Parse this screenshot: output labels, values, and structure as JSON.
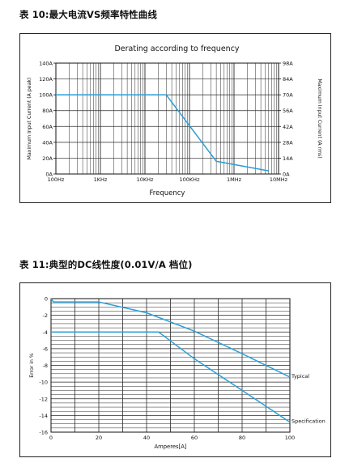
{
  "headings": {
    "table10": "表 10:最大电流VS频率特性曲线",
    "table11": "表 11:典型的DC线性度(0.01V/A 档位)"
  },
  "colors": {
    "series": "#2a9fd8",
    "grid": "#2a2a2a",
    "axis": "#111111"
  },
  "chart_data": [
    {
      "type": "line",
      "title": "Derating according to frequency",
      "xlabel": "Frequency",
      "ylabel_left": "Maximum Input Current (A peak)",
      "ylabel_right": "Maximum Input Current (A rms)",
      "x_scale": "log",
      "xlim": [
        100,
        10000000
      ],
      "x_ticks": [
        100,
        1000,
        10000,
        100000,
        1000000,
        10000000
      ],
      "x_tick_labels": [
        "100Hz",
        "1KHz",
        "10KHz",
        "100KHz",
        "1MHz",
        "10MHz"
      ],
      "ylim": [
        0,
        140
      ],
      "y_ticks": [
        0,
        20,
        40,
        60,
        80,
        100,
        120,
        140
      ],
      "y_tick_labels": [
        "0A",
        "20A",
        "40A",
        "60A",
        "80A",
        "100A",
        "120A",
        "140A"
      ],
      "y_right_tick_labels": [
        "0A",
        "14A",
        "28A",
        "42A",
        "56A",
        "70A",
        "84A",
        "98A"
      ],
      "grid": true,
      "series": [
        {
          "x": [
            100,
            30000,
            400000,
            6000000
          ],
          "y": [
            100,
            100,
            16,
            4
          ]
        }
      ]
    },
    {
      "type": "line",
      "title": "",
      "xlabel": "Amperes[A]",
      "ylabel": "Error in %",
      "xlim": [
        0,
        100
      ],
      "x_ticks": [
        0,
        20,
        40,
        60,
        80,
        100
      ],
      "x_tick_labels": [
        "0",
        "20",
        "40",
        "60",
        "80",
        "100"
      ],
      "ylim": [
        -16,
        0
      ],
      "y_ticks": [
        0,
        -2,
        -4,
        -6,
        -8,
        -10,
        -12,
        -14,
        -16
      ],
      "y_tick_labels": [
        "0",
        "-2",
        "-4",
        "-6",
        "-8",
        "-10",
        "-12",
        "-14",
        "-16"
      ],
      "grid": true,
      "series": [
        {
          "name": "Typical",
          "x": [
            0,
            1,
            20,
            40,
            60,
            80,
            100
          ],
          "y": [
            0,
            -0.4,
            -0.4,
            -1.7,
            -3.9,
            -6.6,
            -9.4
          ]
        },
        {
          "name": "Specification",
          "x": [
            0,
            45,
            60,
            80,
            100
          ],
          "y": [
            -4,
            -4,
            -7.2,
            -11,
            -14.8
          ]
        }
      ]
    }
  ]
}
